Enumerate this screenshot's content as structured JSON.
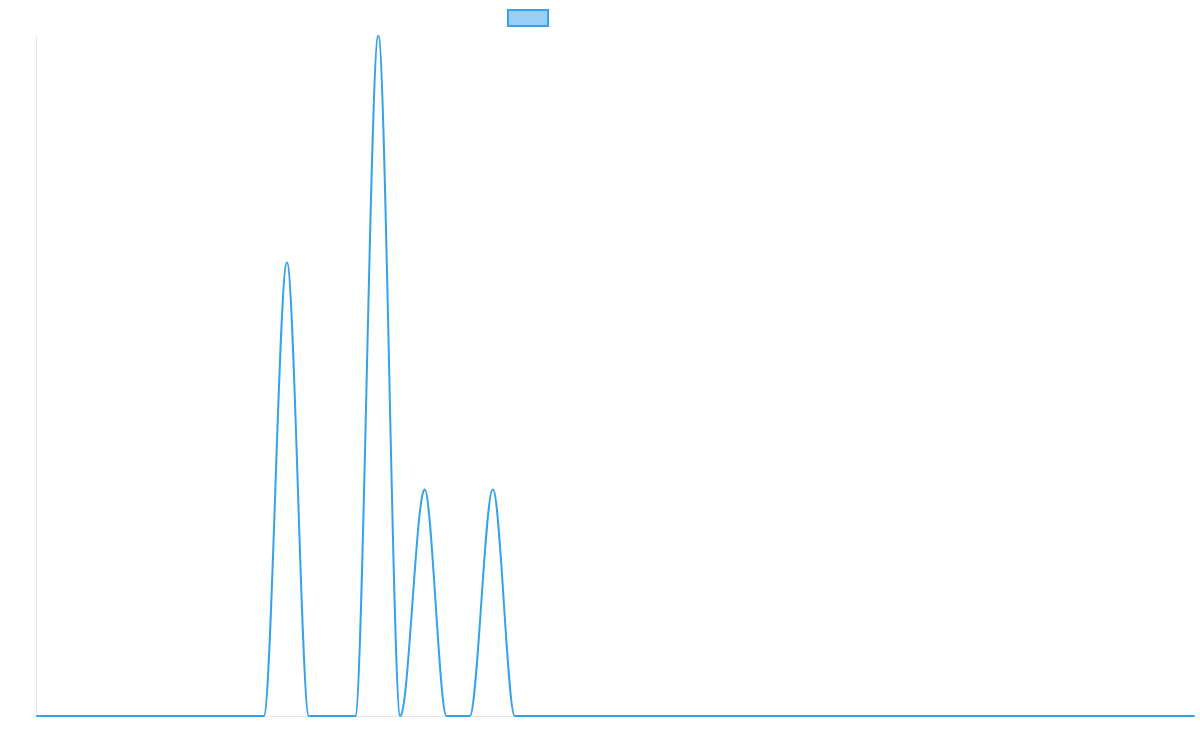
{
  "chart_data": {
    "type": "line",
    "title": "",
    "xlabel": "",
    "ylabel": "",
    "xlim": [
      0,
      100
    ],
    "ylim": [
      0,
      100
    ],
    "grid": false,
    "legend": {
      "position": "top",
      "labels": [
        ""
      ]
    },
    "colors": {
      "line": "#36a2eb",
      "legend_fill": "#9ad0f5",
      "axis": "#e6e6e6"
    },
    "series": [
      {
        "values": [
          {
            "x": 0,
            "y": 0
          },
          {
            "x": 19.6,
            "y": 0
          },
          {
            "x": 21.6,
            "y": 66.7
          },
          {
            "x": 23.5,
            "y": 0
          },
          {
            "x": 27.5,
            "y": 0
          },
          {
            "x": 29.5,
            "y": 100
          },
          {
            "x": 31.4,
            "y": 0
          },
          {
            "x": 33.5,
            "y": 33.3
          },
          {
            "x": 35.4,
            "y": 0
          },
          {
            "x": 37.4,
            "y": 0
          },
          {
            "x": 39.4,
            "y": 33.3
          },
          {
            "x": 41.3,
            "y": 0
          },
          {
            "x": 100,
            "y": 0
          }
        ]
      }
    ]
  }
}
